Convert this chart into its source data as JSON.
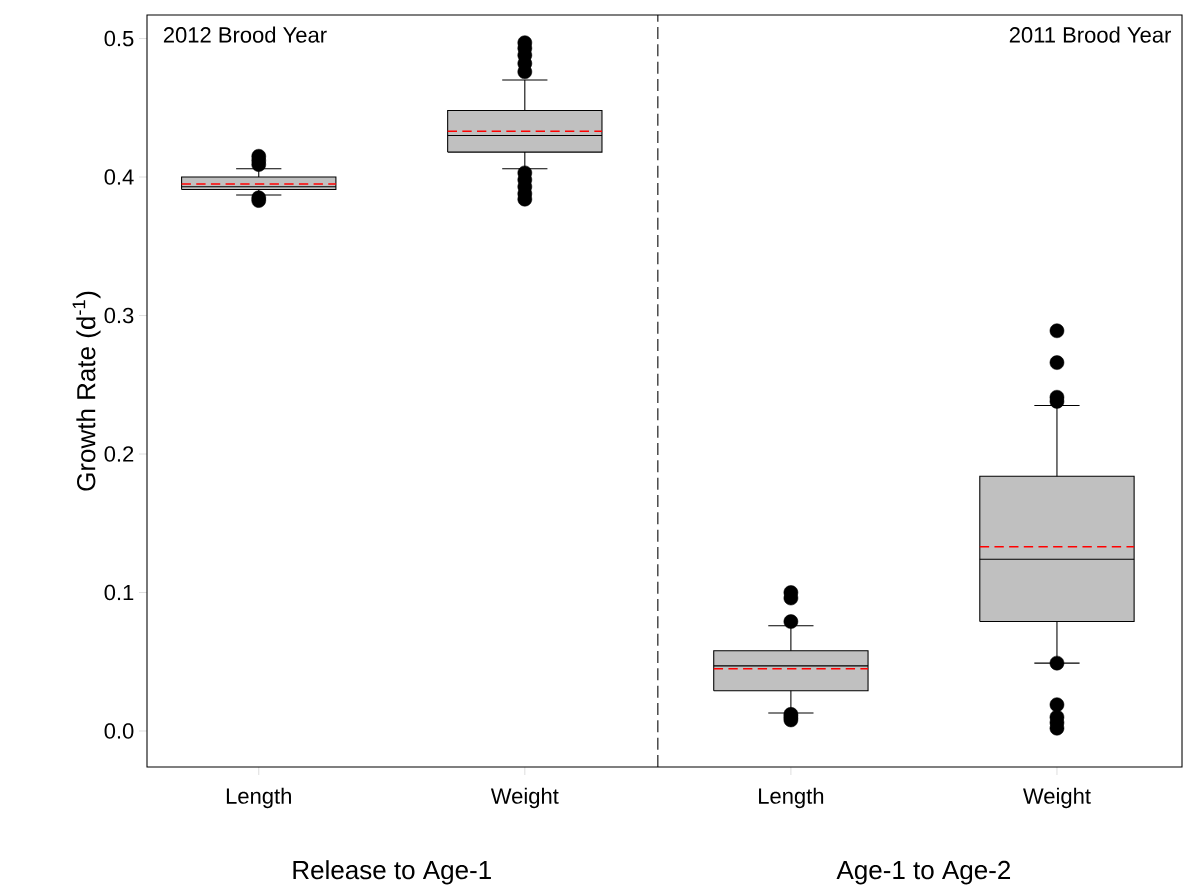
{
  "chart_data": {
    "type": "box",
    "ylabel": "Growth Rate (d$^{-1}$)",
    "categories": [
      "Length",
      "Weight",
      "Length",
      "Weight"
    ],
    "color": "#c0c0c0",
    "boxes": [
      {
        "low": 0.387,
        "q1": 0.391,
        "median": 0.393,
        "q3": 0.4,
        "high": 0.406,
        "mean": 0.395,
        "outliers": [
          0.415,
          0.412,
          0.409,
          0.385,
          0.383
        ]
      },
      {
        "low": 0.406,
        "q1": 0.418,
        "median": 0.43,
        "q3": 0.448,
        "high": 0.47,
        "mean": 0.433,
        "outliers": [
          0.497,
          0.493,
          0.488,
          0.482,
          0.476,
          0.403,
          0.398,
          0.393,
          0.388,
          0.384
        ]
      },
      {
        "low": 0.013,
        "q1": 0.029,
        "median": 0.047,
        "q3": 0.058,
        "high": 0.076,
        "mean": 0.045,
        "outliers": [
          0.1,
          0.096,
          0.079,
          0.012,
          0.01,
          0.008
        ]
      },
      {
        "low": 0.049,
        "q1": 0.079,
        "median": 0.124,
        "q3": 0.184,
        "high": 0.235,
        "mean": 0.133,
        "outliers": [
          0.289,
          0.266,
          0.241,
          0.238,
          0.049,
          0.019,
          0.01,
          0.006,
          0.002
        ]
      }
    ],
    "ylim": [
      -0.026,
      0.517
    ],
    "yticks": [
      {
        "value": 0,
        "label": "0.0"
      },
      {
        "value": 0.1,
        "label": "0.1"
      },
      {
        "value": 0.2,
        "label": "0.2"
      },
      {
        "value": 0.3,
        "label": "0.3"
      },
      {
        "value": 0.4,
        "label": "0.4"
      },
      {
        "value": 0.5,
        "label": "0.5"
      }
    ],
    "annotations": [
      "2012 Brood Year",
      "2011 Brood Year",
      "Release to Age-1",
      "Age-1 to Age-2"
    ],
    "marker": "circle",
    "grid": false
  }
}
